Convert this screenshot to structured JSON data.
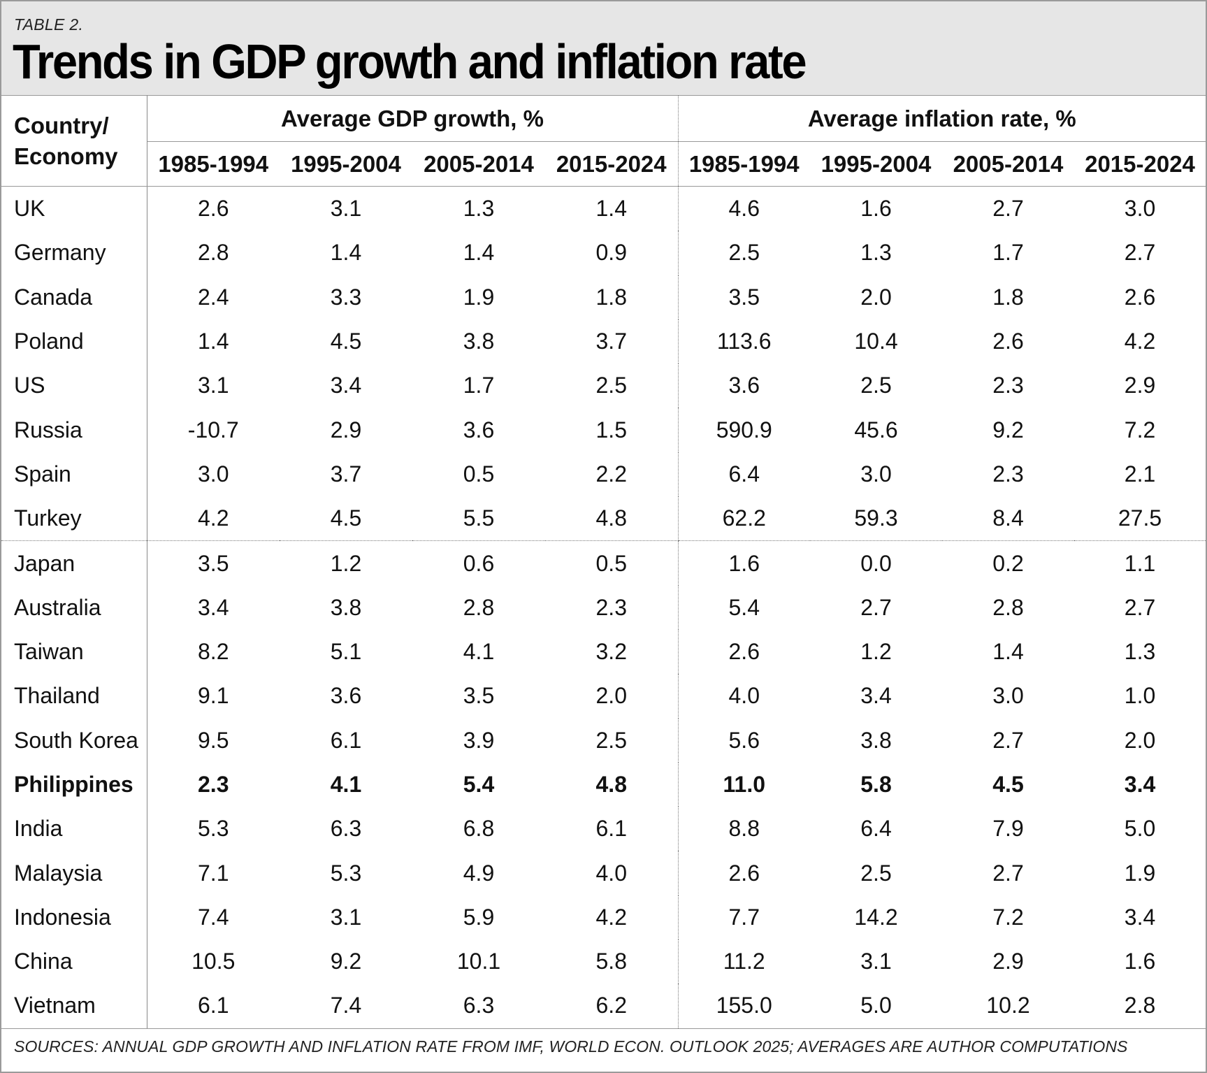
{
  "label": "TABLE 2.",
  "title": "Trends in GDP growth and inflation rate",
  "column_headers": {
    "country": "Country/ Economy",
    "gdp_group": "Average GDP growth, %",
    "inflation_group": "Average inflation rate, %",
    "periods": [
      "1985-1994",
      "1995-2004",
      "2005-2014",
      "2015-2024"
    ]
  },
  "rows": [
    {
      "country": "UK",
      "gdp": [
        "2.6",
        "3.1",
        "1.3",
        "1.4"
      ],
      "inflation": [
        "4.6",
        "1.6",
        "2.7",
        "3.0"
      ]
    },
    {
      "country": "Germany",
      "gdp": [
        "2.8",
        "1.4",
        "1.4",
        "0.9"
      ],
      "inflation": [
        "2.5",
        "1.3",
        "1.7",
        "2.7"
      ]
    },
    {
      "country": "Canada",
      "gdp": [
        "2.4",
        "3.3",
        "1.9",
        "1.8"
      ],
      "inflation": [
        "3.5",
        "2.0",
        "1.8",
        "2.6"
      ]
    },
    {
      "country": "Poland",
      "gdp": [
        "1.4",
        "4.5",
        "3.8",
        "3.7"
      ],
      "inflation": [
        "113.6",
        "10.4",
        "2.6",
        "4.2"
      ]
    },
    {
      "country": "US",
      "gdp": [
        "3.1",
        "3.4",
        "1.7",
        "2.5"
      ],
      "inflation": [
        "3.6",
        "2.5",
        "2.3",
        "2.9"
      ]
    },
    {
      "country": "Russia",
      "gdp": [
        "-10.7",
        "2.9",
        "3.6",
        "1.5"
      ],
      "inflation": [
        "590.9",
        "45.6",
        "9.2",
        "7.2"
      ]
    },
    {
      "country": "Spain",
      "gdp": [
        "3.0",
        "3.7",
        "0.5",
        "2.2"
      ],
      "inflation": [
        "6.4",
        "3.0",
        "2.3",
        "2.1"
      ]
    },
    {
      "country": "Turkey",
      "gdp": [
        "4.2",
        "4.5",
        "5.5",
        "4.8"
      ],
      "inflation": [
        "62.2",
        "59.3",
        "8.4",
        "27.5"
      ]
    },
    {
      "country": "Japan",
      "gdp": [
        "3.5",
        "1.2",
        "0.6",
        "0.5"
      ],
      "inflation": [
        "1.6",
        "0.0",
        "0.2",
        "1.1"
      ]
    },
    {
      "country": "Australia",
      "gdp": [
        "3.4",
        "3.8",
        "2.8",
        "2.3"
      ],
      "inflation": [
        "5.4",
        "2.7",
        "2.8",
        "2.7"
      ]
    },
    {
      "country": "Taiwan",
      "gdp": [
        "8.2",
        "5.1",
        "4.1",
        "3.2"
      ],
      "inflation": [
        "2.6",
        "1.2",
        "1.4",
        "1.3"
      ]
    },
    {
      "country": "Thailand",
      "gdp": [
        "9.1",
        "3.6",
        "3.5",
        "2.0"
      ],
      "inflation": [
        "4.0",
        "3.4",
        "3.0",
        "1.0"
      ]
    },
    {
      "country": "South Korea",
      "gdp": [
        "9.5",
        "6.1",
        "3.9",
        "2.5"
      ],
      "inflation": [
        "5.6",
        "3.8",
        "2.7",
        "2.0"
      ]
    },
    {
      "country": "Philippines",
      "gdp": [
        "2.3",
        "4.1",
        "5.4",
        "4.8"
      ],
      "inflation": [
        "11.0",
        "5.8",
        "4.5",
        "3.4"
      ],
      "bold": true
    },
    {
      "country": "India",
      "gdp": [
        "5.3",
        "6.3",
        "6.8",
        "6.1"
      ],
      "inflation": [
        "8.8",
        "6.4",
        "7.9",
        "5.0"
      ]
    },
    {
      "country": "Malaysia",
      "gdp": [
        "7.1",
        "5.3",
        "4.9",
        "4.0"
      ],
      "inflation": [
        "2.6",
        "2.5",
        "2.7",
        "1.9"
      ]
    },
    {
      "country": "Indonesia",
      "gdp": [
        "7.4",
        "3.1",
        "5.9",
        "4.2"
      ],
      "inflation": [
        "7.7",
        "14.2",
        "7.2",
        "3.4"
      ]
    },
    {
      "country": "China",
      "gdp": [
        "10.5",
        "9.2",
        "10.1",
        "5.8"
      ],
      "inflation": [
        "11.2",
        "3.1",
        "2.9",
        "1.6"
      ]
    },
    {
      "country": "Vietnam",
      "gdp": [
        "6.1",
        "7.4",
        "6.3",
        "6.2"
      ],
      "inflation": [
        "155.0",
        "5.0",
        "10.2",
        "2.8"
      ]
    }
  ],
  "source": "SOURCES: ANNUAL GDP GROWTH AND INFLATION RATE FROM IMF, WORLD ECON. OUTLOOK 2025; AVERAGES ARE AUTHOR COMPUTATIONS"
}
